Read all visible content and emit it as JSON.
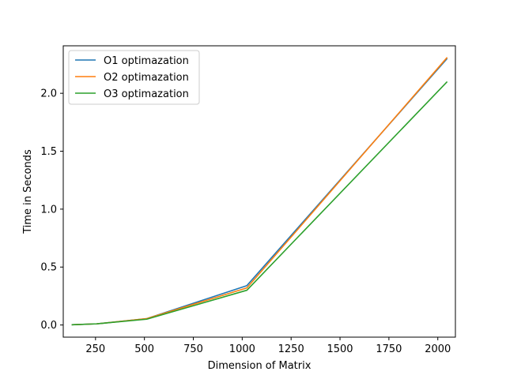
{
  "chart_data": {
    "type": "line",
    "title": "",
    "xlabel": "Dimension of Matrix",
    "ylabel": "Time in Seconds",
    "xlim": [
      85,
      2090
    ],
    "ylim": [
      -0.105,
      2.41
    ],
    "xticks": [
      250,
      500,
      750,
      1000,
      1250,
      1500,
      1750,
      2000
    ],
    "xtick_labels": [
      "250",
      "500",
      "750",
      "1000",
      "1250",
      "1500",
      "1750",
      "2000"
    ],
    "yticks": [
      0.0,
      0.5,
      1.0,
      1.5,
      2.0
    ],
    "ytick_labels": [
      "0.0",
      "0.5",
      "1.0",
      "1.5",
      "2.0"
    ],
    "grid": false,
    "legend_position": "top-left",
    "x": [
      128,
      256,
      512,
      1024,
      2048
    ],
    "series": [
      {
        "name": "O1 optimazation",
        "color": "#1f77b4",
        "values": [
          0.002,
          0.01,
          0.055,
          0.34,
          2.3
        ]
      },
      {
        "name": "O2 optimazation",
        "color": "#ff7f0e",
        "values": [
          0.002,
          0.01,
          0.055,
          0.32,
          2.31
        ]
      },
      {
        "name": "O3 optimazation",
        "color": "#2ca02c",
        "values": [
          0.002,
          0.01,
          0.05,
          0.3,
          2.1
        ]
      }
    ]
  }
}
